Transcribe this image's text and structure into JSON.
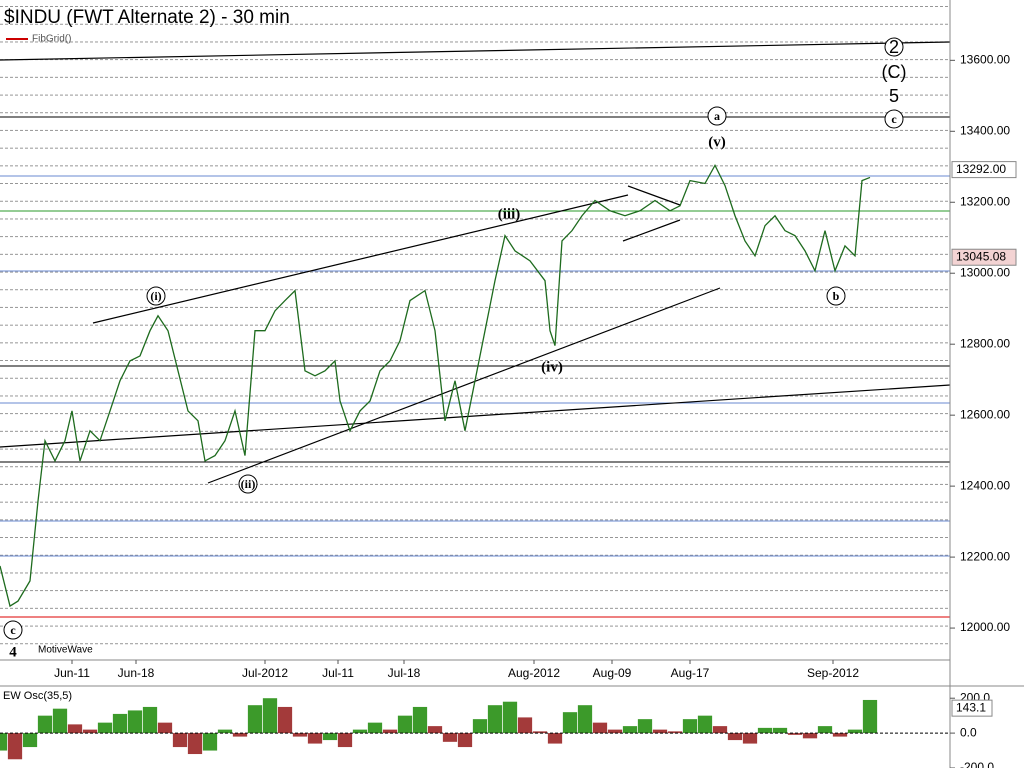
{
  "title": "$INDU (FWT Alternate 2) - 30 min",
  "study": "FibGrid()",
  "brand": "MotiveWave",
  "chart_data": [
    {
      "type": "line",
      "x": [
        0,
        10,
        18,
        30,
        38,
        45,
        55,
        65,
        72,
        80,
        90,
        100,
        110,
        120,
        130,
        140,
        150,
        158,
        168,
        178,
        188,
        198,
        205,
        215,
        225,
        235,
        245,
        255,
        265,
        275,
        285,
        295,
        305,
        315,
        325,
        335,
        340,
        350,
        360,
        370,
        380,
        390,
        400,
        410,
        425,
        435,
        445,
        455,
        465,
        475,
        485,
        495,
        505,
        515,
        530,
        545,
        550,
        555,
        562,
        572,
        582,
        595,
        610,
        625,
        640,
        655,
        670,
        680,
        690,
        705,
        715,
        725,
        735,
        745,
        755,
        765,
        775,
        785,
        795,
        805,
        815,
        825,
        835,
        845,
        855,
        862,
        870
      ],
      "series": [
        {
          "name": "$INDU",
          "color": "#1e6b1e",
          "values": [
            12175,
            12062,
            12076,
            12133,
            12358,
            12528,
            12471,
            12528,
            12612,
            12471,
            12556,
            12528,
            12612,
            12697,
            12753,
            12767,
            12838,
            12880,
            12838,
            12725,
            12612,
            12584,
            12471,
            12486,
            12528,
            12612,
            12486,
            12838,
            12838,
            12894,
            12923,
            12951,
            12725,
            12711,
            12725,
            12753,
            12640,
            12556,
            12612,
            12640,
            12725,
            12753,
            12810,
            12923,
            12951,
            12838,
            12584,
            12697,
            12556,
            12697,
            12838,
            12979,
            13106,
            13063,
            13035,
            12979,
            12838,
            12796,
            13091,
            13120,
            13162,
            13205,
            13176,
            13162,
            13176,
            13205,
            13176,
            13190,
            13261,
            13253,
            13304,
            13247,
            13162,
            13091,
            13049,
            13134,
            13162,
            13120,
            13106,
            13063,
            13007,
            13120,
            13007,
            13077,
            13049,
            13261,
            13270
          ]
        }
      ],
      "xlim": [
        0,
        950
      ],
      "xticks": [
        {
          "value": 72,
          "label": "Jun-11"
        },
        {
          "value": 136,
          "label": "Jun-18"
        },
        {
          "value": 265,
          "label": "Jul-2012"
        },
        {
          "value": 338,
          "label": "Jul-11"
        },
        {
          "value": 404,
          "label": "Jul-18"
        },
        {
          "value": 534,
          "label": "Aug-2012"
        },
        {
          "value": 612,
          "label": "Aug-09"
        },
        {
          "value": 690,
          "label": "Aug-17"
        },
        {
          "value": 833,
          "label": "Sep-2012"
        }
      ],
      "ylim": [
        11910,
        13770
      ],
      "yticks": [
        {
          "value": 12000,
          "label": "12000.00"
        },
        {
          "value": 12200,
          "label": "12200.00"
        },
        {
          "value": 12400,
          "label": "12400.00"
        },
        {
          "value": 12600,
          "label": "12600.00"
        },
        {
          "value": 12800,
          "label": "12800.00"
        },
        {
          "value": 13000,
          "label": "13000.00"
        },
        {
          "value": 13200,
          "label": "13200.00"
        },
        {
          "value": 13400,
          "label": "13400.00"
        },
        {
          "value": 13600,
          "label": "13600.00"
        }
      ],
      "markers": [
        {
          "value": 13292,
          "label": "13292.00"
        },
        {
          "value": 13045.08,
          "label": "13045.08"
        }
      ],
      "annotations": [
        "(i)",
        "(ii)",
        "(iii)",
        "(iv)",
        "(v)",
        "a",
        "b",
        "c",
        "2",
        "(C)",
        "5",
        "c",
        "4"
      ]
    },
    {
      "type": "histogram",
      "title": "EW Osc(35,5)",
      "x": [
        0,
        15,
        30,
        45,
        60,
        75,
        90,
        105,
        120,
        135,
        150,
        165,
        180,
        195,
        210,
        225,
        240,
        255,
        270,
        285,
        300,
        315,
        330,
        345,
        360,
        375,
        390,
        405,
        420,
        435,
        450,
        465,
        480,
        495,
        510,
        525,
        540,
        555,
        570,
        585,
        600,
        615,
        630,
        645,
        660,
        675,
        690,
        705,
        720,
        735,
        750,
        765,
        780,
        795,
        810,
        825,
        840,
        855,
        870
      ],
      "values": [
        -100,
        -150,
        -80,
        100,
        140,
        50,
        20,
        60,
        110,
        130,
        150,
        60,
        -80,
        -120,
        -100,
        20,
        -20,
        160,
        200,
        150,
        -20,
        -60,
        -40,
        -80,
        20,
        60,
        20,
        100,
        150,
        40,
        -50,
        -80,
        80,
        160,
        180,
        90,
        10,
        -60,
        120,
        160,
        60,
        20,
        40,
        80,
        20,
        10,
        80,
        100,
        40,
        -40,
        -60,
        30,
        30,
        -10,
        -30,
        40,
        -20,
        20,
        190
      ],
      "up_color": "#3c9a2a",
      "down_color": "#a33a3a",
      "xlim": [
        0,
        950
      ],
      "ylim": [
        -200,
        270
      ],
      "yticks": [
        {
          "value": 200,
          "label": "200.0"
        },
        {
          "value": 0,
          "label": "0.0"
        },
        {
          "value": -200,
          "label": "-200.0"
        }
      ],
      "markers": [
        {
          "value": 143.1,
          "label": "143.1"
        }
      ]
    }
  ]
}
